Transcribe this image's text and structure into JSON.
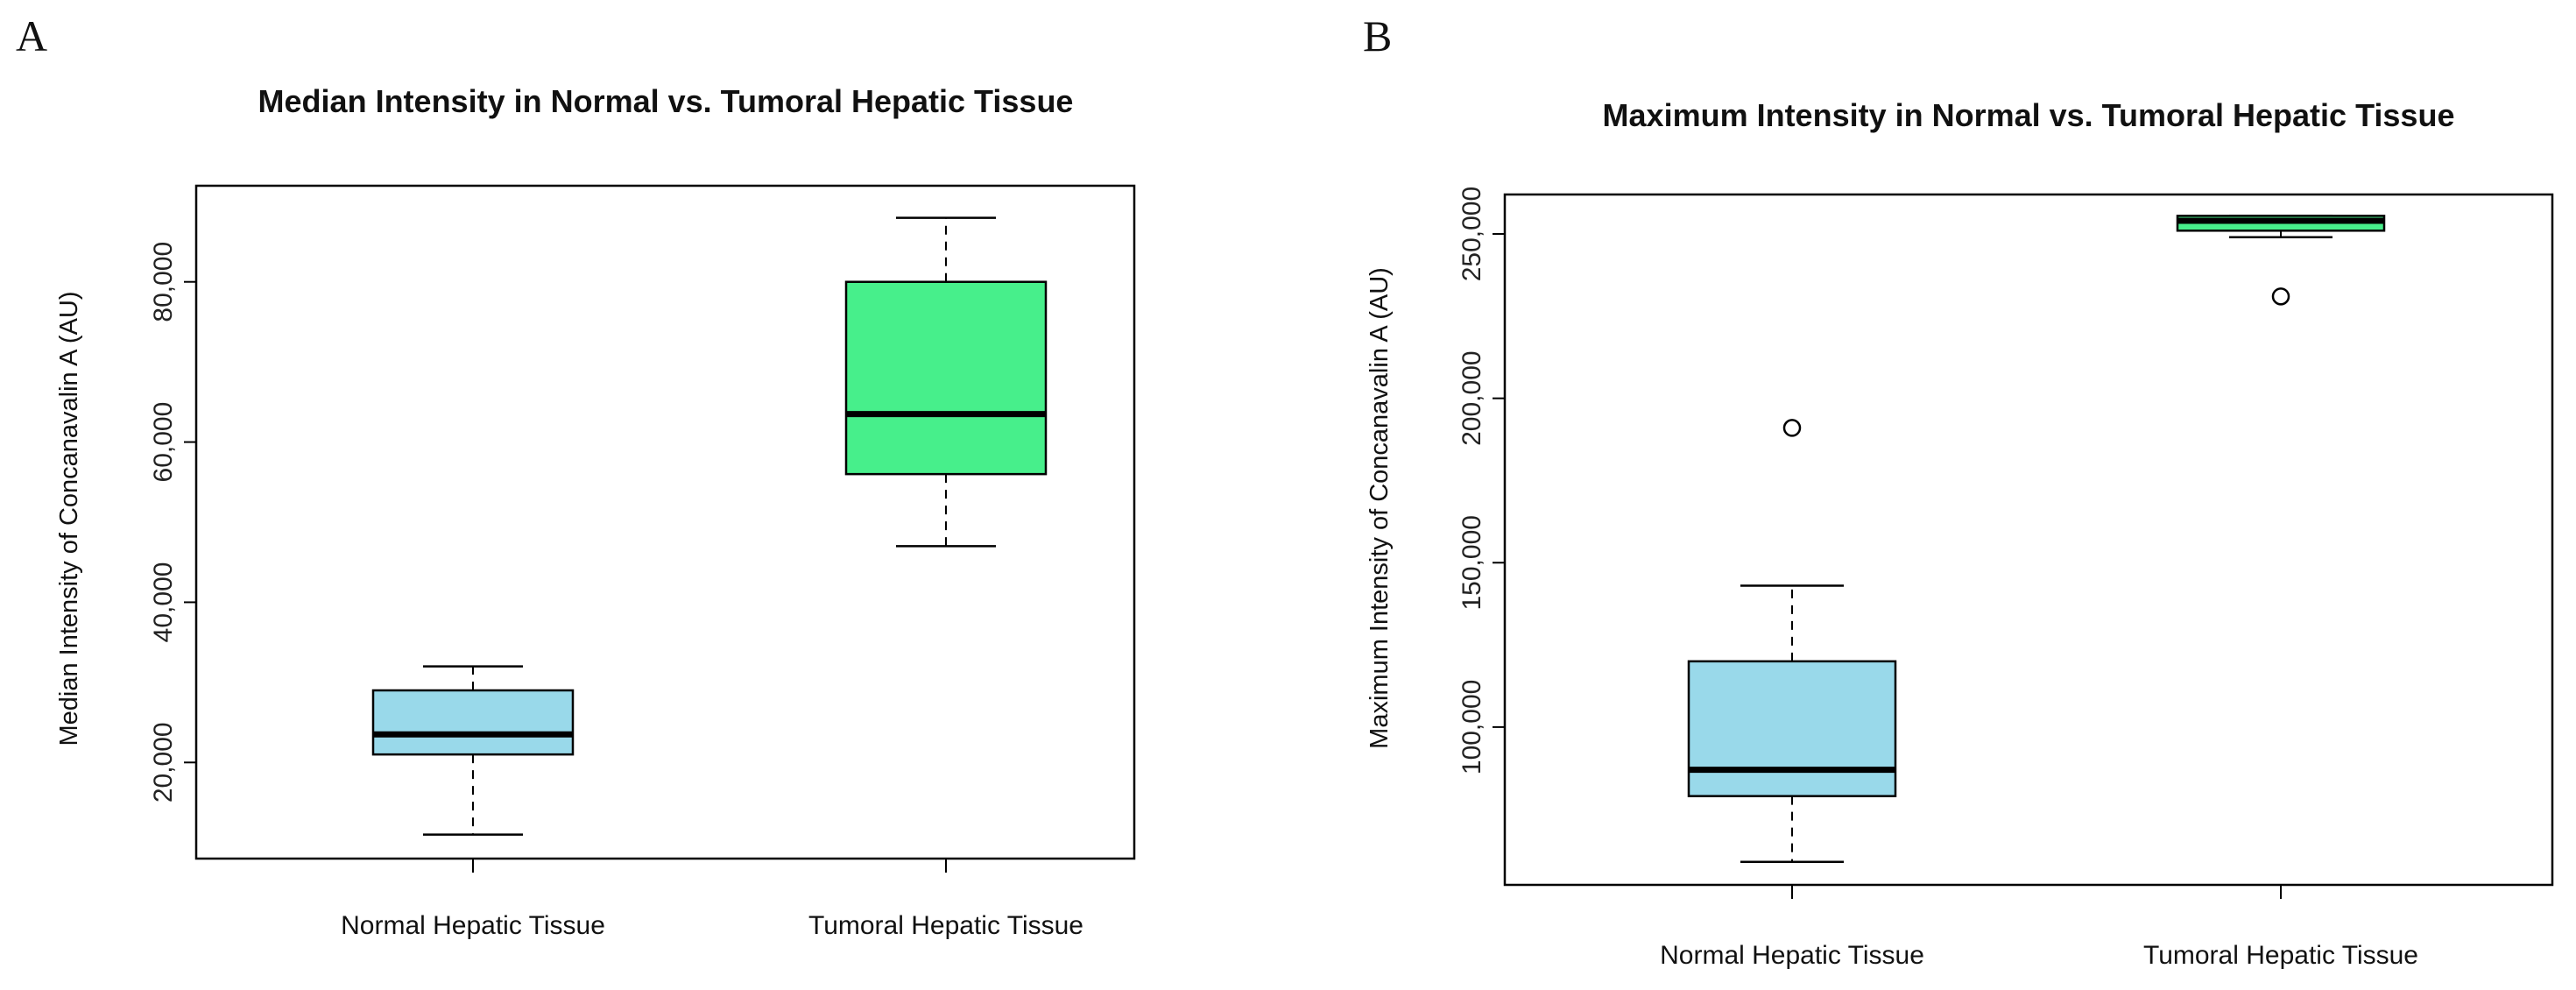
{
  "chart_data": [
    {
      "panel": "A",
      "type": "box",
      "title": "Median Intensity in Normal vs. Tumoral Hepatic Tissue",
      "xlabel": "",
      "ylabel": "Median Intensity of Concanavalin A (AU)",
      "ylim": [
        8000,
        92000
      ],
      "yticks": [
        20000,
        40000,
        60000,
        80000
      ],
      "ytick_labels": [
        "20,000",
        "40,000",
        "60,000",
        "80,000"
      ],
      "categories": [
        "Normal Hepatic Tissue",
        "Tumoral Hepatic Tissue"
      ],
      "boxes": [
        {
          "category": "Normal Hepatic Tissue",
          "whisker_low": 11000,
          "q1": 21000,
          "median": 23500,
          "q3": 29000,
          "whisker_high": 32000,
          "outliers": [],
          "color": "#99d9ea"
        },
        {
          "category": "Tumoral Hepatic Tissue",
          "whisker_low": 47000,
          "q1": 56000,
          "median": 63500,
          "q3": 80000,
          "whisker_high": 88000,
          "outliers": [],
          "color": "#47ef8b"
        }
      ]
    },
    {
      "panel": "B",
      "type": "box",
      "title": "Maximum Intensity in Normal vs. Tumoral Hepatic Tissue",
      "xlabel": "",
      "ylabel": "Maximum Intensity of Concanavalin A  (AU)",
      "ylim": [
        52000,
        262000
      ],
      "yticks": [
        100000,
        150000,
        200000,
        250000
      ],
      "ytick_labels": [
        "100,000",
        "150,000",
        "200,000",
        "250,000"
      ],
      "categories": [
        "Normal Hepatic Tissue",
        "Tumoral Hepatic Tissue"
      ],
      "boxes": [
        {
          "category": "Normal Hepatic Tissue",
          "whisker_low": 59000,
          "q1": 79000,
          "median": 87000,
          "q3": 120000,
          "whisker_high": 143000,
          "outliers": [
            191000
          ],
          "color": "#99d9ea"
        },
        {
          "category": "Tumoral Hepatic Tissue",
          "whisker_low": 249000,
          "q1": 251000,
          "median": 254000,
          "q3": 255500,
          "whisker_high": 255500,
          "outliers": [
            231000
          ],
          "color": "#47ef8b"
        }
      ]
    }
  ]
}
